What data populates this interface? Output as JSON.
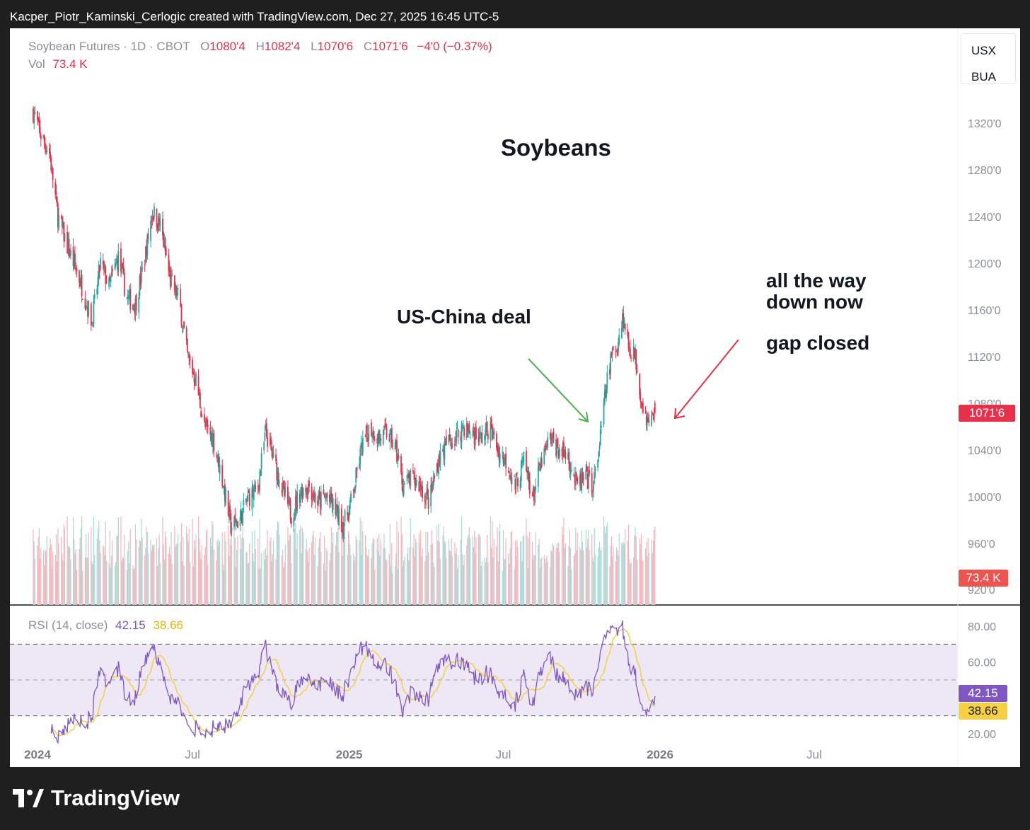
{
  "watermark": "Kacper_Piotr_Kaminski_Cerlogic created with TradingView.com, Dec 27, 2025 16:45 UTC-5",
  "brand": "TradingView",
  "legend": {
    "symbol": "Soybean Futures · 1D · CBOT",
    "o_label": "O",
    "o_value": "1080'4",
    "h_label": "H",
    "h_value": "1082'4",
    "l_label": "L",
    "l_value": "1070'6",
    "c_label": "C",
    "c_value": "1071'6",
    "change": "−4'0 (−0.37%)",
    "vol_label": "Vol",
    "vol_value": "73.4 K"
  },
  "symbols_box": [
    "USX",
    "BUA"
  ],
  "annotations": {
    "title": "Soybeans",
    "deal": "US-China deal",
    "down_line1": "all the way",
    "down_line2": "down now",
    "gap": "gap closed"
  },
  "price_axis": [
    "1320'0",
    "1280'0",
    "1240'0",
    "1200'0",
    "1160'0",
    "1120'0",
    "1080'0",
    "1040'0",
    "1000'0",
    "960'0",
    "920'0"
  ],
  "price_axis_values": [
    1320,
    1280,
    1240,
    1200,
    1160,
    1120,
    1080,
    1040,
    1000,
    960,
    920
  ],
  "rsi_axis": [
    "80.00",
    "60.00",
    "20.00"
  ],
  "rsi_axis_values": [
    80,
    60,
    20
  ],
  "time_axis": [
    {
      "label": "2024",
      "bold": true
    },
    {
      "label": "Jul",
      "bold": false
    },
    {
      "label": "2025",
      "bold": true
    },
    {
      "label": "Jul",
      "bold": false
    },
    {
      "label": "2026",
      "bold": true
    },
    {
      "label": "Jul",
      "bold": false
    }
  ],
  "last_price_tag": "1071'6",
  "volume_tag": "73.4 K",
  "rsi": {
    "label": "RSI (14, close)",
    "value": "42.15",
    "ma_value": "38.66",
    "upper_band": 70,
    "middle": 50,
    "lower_band": 30
  },
  "colors": {
    "up": "#26a69a",
    "down": "#e8304a",
    "rsi_line": "#7e57c2",
    "rsi_ma": "#f5d042",
    "rsi_band": "#ede7f6",
    "green_arrow": "#4caf50",
    "red_arrow": "#e8304a"
  },
  "chart_data": {
    "type": "candlestick",
    "title": "Soybeans",
    "ylim": [
      910,
      1360
    ],
    "rsi_ylim": [
      10,
      90
    ],
    "close_anchors": [
      {
        "date": "2023-12-27",
        "close": 1330
      },
      {
        "date": "2024-01-05",
        "close": 1310
      },
      {
        "date": "2024-01-15",
        "close": 1295
      },
      {
        "date": "2024-01-25",
        "close": 1240
      },
      {
        "date": "2024-02-05",
        "close": 1215
      },
      {
        "date": "2024-02-20",
        "close": 1185
      },
      {
        "date": "2024-03-05",
        "close": 1150
      },
      {
        "date": "2024-03-15",
        "close": 1200
      },
      {
        "date": "2024-03-25",
        "close": 1180
      },
      {
        "date": "2024-04-05",
        "close": 1205
      },
      {
        "date": "2024-04-15",
        "close": 1170
      },
      {
        "date": "2024-04-25",
        "close": 1165
      },
      {
        "date": "2024-05-05",
        "close": 1200
      },
      {
        "date": "2024-05-15",
        "close": 1245
      },
      {
        "date": "2024-05-25",
        "close": 1230
      },
      {
        "date": "2024-06-05",
        "close": 1185
      },
      {
        "date": "2024-06-15",
        "close": 1170
      },
      {
        "date": "2024-06-25",
        "close": 1120
      },
      {
        "date": "2024-07-05",
        "close": 1100
      },
      {
        "date": "2024-07-15",
        "close": 1060
      },
      {
        "date": "2024-07-25",
        "close": 1050
      },
      {
        "date": "2024-08-05",
        "close": 1015
      },
      {
        "date": "2024-08-15",
        "close": 975
      },
      {
        "date": "2024-08-25",
        "close": 980
      },
      {
        "date": "2024-09-05",
        "close": 1000
      },
      {
        "date": "2024-09-15",
        "close": 1005
      },
      {
        "date": "2024-09-25",
        "close": 1055
      },
      {
        "date": "2024-10-05",
        "close": 1030
      },
      {
        "date": "2024-10-15",
        "close": 1005
      },
      {
        "date": "2024-10-25",
        "close": 985
      },
      {
        "date": "2024-11-05",
        "close": 1005
      },
      {
        "date": "2024-11-15",
        "close": 1010
      },
      {
        "date": "2024-11-25",
        "close": 995
      },
      {
        "date": "2024-12-05",
        "close": 1000
      },
      {
        "date": "2024-12-15",
        "close": 990
      },
      {
        "date": "2024-12-25",
        "close": 975
      },
      {
        "date": "2025-01-05",
        "close": 1000
      },
      {
        "date": "2025-01-15",
        "close": 1040
      },
      {
        "date": "2025-01-25",
        "close": 1060
      },
      {
        "date": "2025-02-05",
        "close": 1050
      },
      {
        "date": "2025-02-15",
        "close": 1055
      },
      {
        "date": "2025-02-25",
        "close": 1040
      },
      {
        "date": "2025-03-05",
        "close": 1010
      },
      {
        "date": "2025-03-15",
        "close": 1015
      },
      {
        "date": "2025-03-25",
        "close": 1010
      },
      {
        "date": "2025-04-05",
        "close": 995
      },
      {
        "date": "2025-04-15",
        "close": 1030
      },
      {
        "date": "2025-04-25",
        "close": 1045
      },
      {
        "date": "2025-05-05",
        "close": 1050
      },
      {
        "date": "2025-05-15",
        "close": 1060
      },
      {
        "date": "2025-05-25",
        "close": 1055
      },
      {
        "date": "2025-06-05",
        "close": 1050
      },
      {
        "date": "2025-06-15",
        "close": 1060
      },
      {
        "date": "2025-06-25",
        "close": 1040
      },
      {
        "date": "2025-07-05",
        "close": 1030
      },
      {
        "date": "2025-07-15",
        "close": 1010
      },
      {
        "date": "2025-07-25",
        "close": 1030
      },
      {
        "date": "2025-08-05",
        "close": 1000
      },
      {
        "date": "2025-08-15",
        "close": 1030
      },
      {
        "date": "2025-08-25",
        "close": 1050
      },
      {
        "date": "2025-09-05",
        "close": 1040
      },
      {
        "date": "2025-09-15",
        "close": 1035
      },
      {
        "date": "2025-09-25",
        "close": 1010
      },
      {
        "date": "2025-10-05",
        "close": 1015
      },
      {
        "date": "2025-10-15",
        "close": 1010
      },
      {
        "date": "2025-10-22",
        "close": 1045
      },
      {
        "date": "2025-10-30",
        "close": 1095
      },
      {
        "date": "2025-11-05",
        "close": 1120
      },
      {
        "date": "2025-11-12",
        "close": 1130
      },
      {
        "date": "2025-11-18",
        "close": 1155
      },
      {
        "date": "2025-11-25",
        "close": 1130
      },
      {
        "date": "2025-12-03",
        "close": 1120
      },
      {
        "date": "2025-12-10",
        "close": 1085
      },
      {
        "date": "2025-12-18",
        "close": 1062
      },
      {
        "date": "2025-12-26",
        "close": 1071.75
      }
    ]
  }
}
